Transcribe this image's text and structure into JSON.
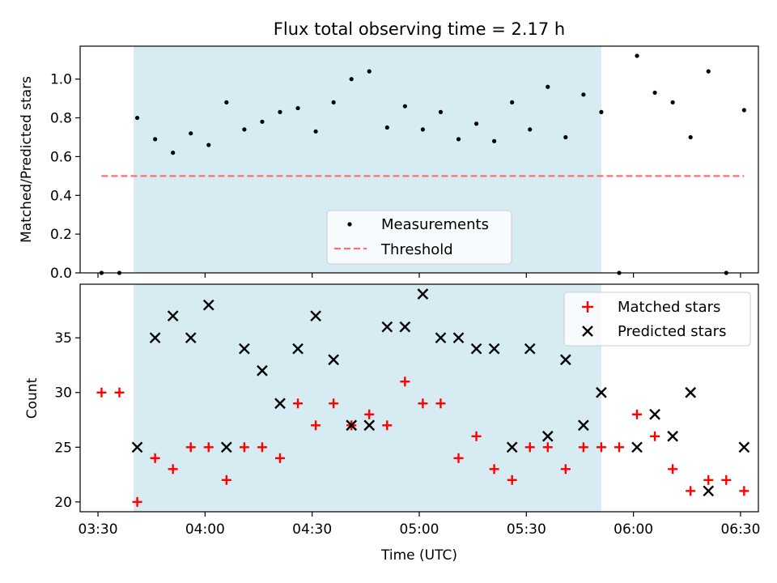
{
  "title": "Flux total observing time = 2.17 h",
  "xlabel": "Time (UTC)",
  "x_ticks": [
    "03:30",
    "04:00",
    "04:30",
    "05:00",
    "05:30",
    "06:00",
    "06:30"
  ],
  "colors": {
    "highlight": "#add8e6",
    "measurements": "#000000",
    "threshold": "#ff6f6f",
    "matched": "#ff0000",
    "predicted": "#000000"
  },
  "chart_data": [
    {
      "type": "scatter",
      "ylabel": "Matched/Predicted stars",
      "xlim": [
        "03:25",
        "06:35"
      ],
      "ylim": [
        0,
        1.17
      ],
      "y_ticks": [
        "0.0",
        "0.2",
        "0.4",
        "0.6",
        "0.8",
        "1.0"
      ],
      "highlight_span": [
        "03:40",
        "05:51"
      ],
      "threshold": {
        "value": 0.5,
        "x_range": [
          "03:31",
          "06:31"
        ]
      },
      "legend": {
        "position": "lower-center",
        "entries": [
          "Measurements",
          "Threshold"
        ]
      },
      "series": [
        {
          "name": "Measurements",
          "x": [
            "03:31",
            "03:36",
            "03:41",
            "03:46",
            "03:51",
            "03:56",
            "04:01",
            "04:06",
            "04:11",
            "04:16",
            "04:21",
            "04:26",
            "04:31",
            "04:36",
            "04:41",
            "04:46",
            "04:51",
            "04:56",
            "05:01",
            "05:06",
            "05:11",
            "05:16",
            "05:21",
            "05:26",
            "05:31",
            "05:36",
            "05:41",
            "05:46",
            "05:51",
            "05:56",
            "06:01",
            "06:06",
            "06:11",
            "06:16",
            "06:21",
            "06:26",
            "06:31"
          ],
          "y": [
            0.0,
            0.0,
            0.8,
            0.69,
            0.62,
            0.72,
            0.66,
            0.88,
            0.74,
            0.78,
            0.83,
            0.85,
            0.73,
            0.88,
            1.0,
            1.04,
            0.75,
            0.86,
            0.74,
            0.83,
            0.69,
            0.77,
            0.68,
            0.88,
            0.74,
            0.96,
            0.7,
            0.92,
            0.83,
            0.0,
            1.12,
            0.93,
            0.88,
            0.7,
            1.04,
            0.0,
            0.84
          ]
        }
      ]
    },
    {
      "type": "scatter",
      "ylabel": "Count",
      "xlim": [
        "03:25",
        "06:35"
      ],
      "ylim": [
        19.1,
        39.9
      ],
      "y_ticks": [
        "20",
        "25",
        "30",
        "35"
      ],
      "highlight_span": [
        "03:40",
        "05:51"
      ],
      "legend": {
        "position": "upper-right",
        "entries": [
          "Matched stars",
          "Predicted stars"
        ]
      },
      "series": [
        {
          "name": "Matched stars",
          "x": [
            "03:31",
            "03:36",
            "03:41",
            "03:46",
            "03:51",
            "03:56",
            "04:01",
            "04:06",
            "04:11",
            "04:16",
            "04:21",
            "04:26",
            "04:31",
            "04:36",
            "04:41",
            "04:46",
            "04:51",
            "04:56",
            "05:01",
            "05:06",
            "05:11",
            "05:16",
            "05:21",
            "05:26",
            "05:31",
            "05:36",
            "05:41",
            "05:46",
            "05:51",
            "05:56",
            "06:01",
            "06:06",
            "06:11",
            "06:16",
            "06:21",
            "06:26",
            "06:31"
          ],
          "y": [
            30,
            30,
            20,
            24,
            23,
            25,
            25,
            22,
            25,
            25,
            24,
            29,
            27,
            29,
            27,
            28,
            27,
            31,
            29,
            29,
            24,
            26,
            23,
            22,
            25,
            25,
            23,
            25,
            25,
            25,
            28,
            26,
            23,
            21,
            22,
            22,
            21
          ]
        },
        {
          "name": "Predicted stars",
          "x": [
            "03:41",
            "03:46",
            "03:51",
            "03:56",
            "04:01",
            "04:06",
            "04:11",
            "04:16",
            "04:21",
            "04:26",
            "04:31",
            "04:36",
            "04:41",
            "04:46",
            "04:51",
            "04:56",
            "05:01",
            "05:06",
            "05:11",
            "05:16",
            "05:21",
            "05:26",
            "05:31",
            "05:36",
            "05:41",
            "05:46",
            "05:51",
            "06:01",
            "06:06",
            "06:11",
            "06:16",
            "06:21",
            "06:31"
          ],
          "y": [
            25,
            35,
            37,
            35,
            38,
            25,
            34,
            32,
            29,
            34,
            37,
            33,
            27,
            27,
            36,
            36,
            39,
            35,
            35,
            34,
            34,
            25,
            34,
            26,
            33,
            27,
            30,
            25,
            28,
            26,
            30,
            21,
            25
          ]
        }
      ]
    }
  ]
}
